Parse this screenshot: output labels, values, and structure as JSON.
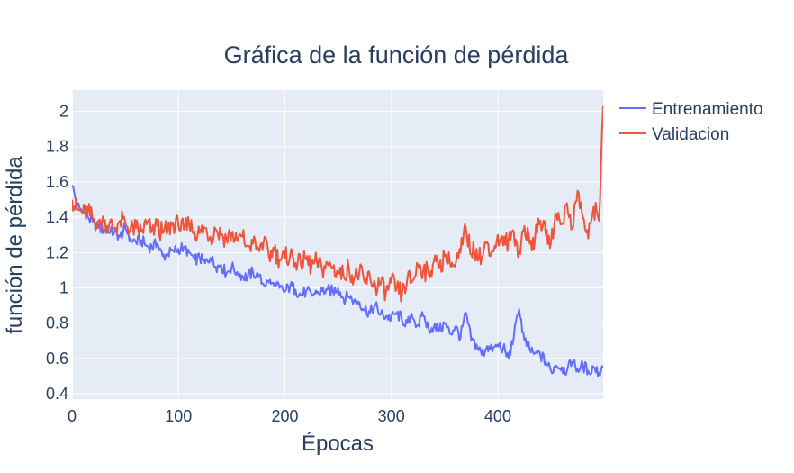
{
  "chart_data": {
    "type": "line",
    "title": "Gráfica de la función de pérdida",
    "xlabel": "Épocas",
    "ylabel": "función de pérdida",
    "xlim": [
      0,
      499
    ],
    "ylim": [
      0.37,
      2.12
    ],
    "x_ticks": [
      0,
      100,
      200,
      300,
      400
    ],
    "x_tick_labels": [
      "0",
      "100",
      "200",
      "300",
      "400"
    ],
    "y_ticks": [
      0.4,
      0.6,
      0.8,
      1.0,
      1.2,
      1.4,
      1.6,
      1.8,
      2.0
    ],
    "y_tick_labels": [
      "0.4",
      "0.6",
      "0.8",
      "1",
      "1.2",
      "1.4",
      "1.6",
      "1.8",
      "2"
    ],
    "grid": true,
    "legend_position": "top-right",
    "plot_background": "#e5ecf6",
    "x": "epochs 0 to 499 (one point per epoch); the values below are sampled every 5 epochs",
    "series": [
      {
        "name": "Entrenamiento",
        "color": "#636efa",
        "x": [
          0,
          5,
          10,
          15,
          20,
          25,
          30,
          35,
          40,
          45,
          50,
          55,
          60,
          65,
          70,
          75,
          80,
          85,
          90,
          95,
          100,
          105,
          110,
          115,
          120,
          125,
          130,
          135,
          140,
          145,
          150,
          155,
          160,
          165,
          170,
          175,
          180,
          185,
          190,
          195,
          200,
          205,
          210,
          215,
          220,
          225,
          230,
          235,
          240,
          245,
          250,
          255,
          260,
          265,
          270,
          275,
          280,
          285,
          290,
          295,
          300,
          305,
          310,
          315,
          320,
          325,
          330,
          335,
          340,
          345,
          350,
          355,
          360,
          365,
          370,
          375,
          380,
          385,
          390,
          395,
          400,
          405,
          410,
          415,
          420,
          425,
          430,
          435,
          440,
          445,
          450,
          455,
          460,
          465,
          470,
          475,
          480,
          485,
          490,
          495,
          499
        ],
        "values": [
          1.58,
          1.47,
          1.43,
          1.4,
          1.37,
          1.34,
          1.33,
          1.31,
          1.32,
          1.29,
          1.34,
          1.28,
          1.26,
          1.27,
          1.24,
          1.23,
          1.25,
          1.18,
          1.19,
          1.21,
          1.22,
          1.23,
          1.2,
          1.16,
          1.17,
          1.14,
          1.17,
          1.12,
          1.13,
          1.08,
          1.12,
          1.09,
          1.07,
          1.06,
          1.09,
          1.06,
          1.02,
          1.03,
          1.01,
          1.0,
          0.98,
          1.01,
          0.99,
          0.96,
          0.98,
          0.96,
          0.97,
          0.98,
          0.99,
          0.98,
          1.0,
          0.94,
          0.95,
          0.93,
          0.92,
          0.88,
          0.86,
          0.9,
          0.85,
          0.84,
          0.83,
          0.86,
          0.82,
          0.8,
          0.83,
          0.79,
          0.84,
          0.77,
          0.78,
          0.76,
          0.8,
          0.74,
          0.78,
          0.72,
          0.86,
          0.7,
          0.68,
          0.62,
          0.67,
          0.64,
          0.68,
          0.66,
          0.6,
          0.72,
          0.88,
          0.7,
          0.65,
          0.63,
          0.62,
          0.58,
          0.53,
          0.56,
          0.55,
          0.53,
          0.58,
          0.54,
          0.56,
          0.53,
          0.55,
          0.52,
          0.55
        ]
      },
      {
        "name": "Validacion",
        "color": "#ef553b",
        "x": [
          0,
          5,
          10,
          15,
          20,
          25,
          30,
          35,
          40,
          45,
          50,
          55,
          60,
          65,
          70,
          75,
          80,
          85,
          90,
          95,
          100,
          105,
          110,
          115,
          120,
          125,
          130,
          135,
          140,
          145,
          150,
          155,
          160,
          165,
          170,
          175,
          180,
          185,
          190,
          195,
          200,
          205,
          210,
          215,
          220,
          225,
          230,
          235,
          240,
          245,
          250,
          255,
          260,
          265,
          270,
          275,
          280,
          285,
          290,
          295,
          300,
          305,
          310,
          315,
          320,
          325,
          330,
          335,
          340,
          345,
          350,
          355,
          360,
          365,
          370,
          375,
          380,
          385,
          390,
          395,
          400,
          405,
          410,
          415,
          420,
          425,
          430,
          435,
          440,
          445,
          450,
          455,
          460,
          465,
          470,
          475,
          480,
          485,
          490,
          495,
          499
        ],
        "values": [
          1.5,
          1.44,
          1.42,
          1.43,
          1.39,
          1.38,
          1.37,
          1.36,
          1.34,
          1.38,
          1.37,
          1.33,
          1.34,
          1.32,
          1.36,
          1.33,
          1.35,
          1.31,
          1.33,
          1.37,
          1.35,
          1.33,
          1.36,
          1.32,
          1.31,
          1.34,
          1.29,
          1.33,
          1.3,
          1.28,
          1.31,
          1.27,
          1.29,
          1.24,
          1.25,
          1.22,
          1.26,
          1.18,
          1.21,
          1.16,
          1.17,
          1.19,
          1.14,
          1.13,
          1.16,
          1.12,
          1.15,
          1.1,
          1.14,
          1.11,
          1.09,
          1.07,
          1.12,
          1.05,
          1.09,
          1.03,
          1.06,
          1.01,
          1.02,
          0.98,
          1.03,
          1.0,
          0.96,
          1.05,
          1.04,
          1.13,
          1.1,
          1.08,
          1.15,
          1.11,
          1.18,
          1.14,
          1.12,
          1.2,
          1.34,
          1.19,
          1.22,
          1.17,
          1.26,
          1.21,
          1.3,
          1.24,
          1.27,
          1.32,
          1.2,
          1.35,
          1.25,
          1.28,
          1.38,
          1.3,
          1.26,
          1.42,
          1.36,
          1.48,
          1.34,
          1.55,
          1.4,
          1.28,
          1.46,
          1.38,
          2.03
        ]
      }
    ]
  }
}
